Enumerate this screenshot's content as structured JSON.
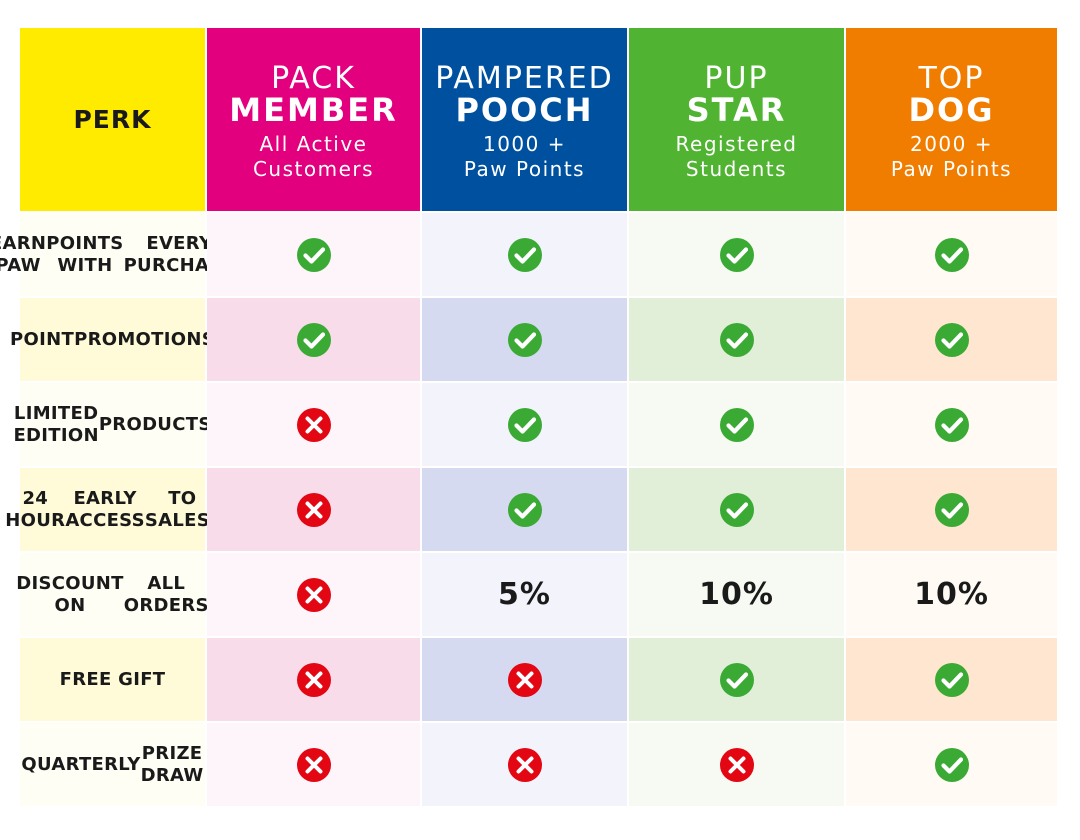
{
  "header": {
    "perk_label": "PERK",
    "tiers": [
      {
        "top": "PACK",
        "main": "MEMBER",
        "sub1": "All Active",
        "sub2": "Customers"
      },
      {
        "top": "PAMPERED",
        "main": "POOCH",
        "sub1": "1000 +",
        "sub2": "Paw Points"
      },
      {
        "top": "PUP",
        "main": "STAR",
        "sub1": "Registered",
        "sub2": "Students"
      },
      {
        "top": "TOP",
        "main": "DOG",
        "sub1": "2000 +",
        "sub2": "Paw Points"
      }
    ]
  },
  "colors": {
    "perk_header": "#ffeb00",
    "tiers": [
      "#e3007e",
      "#0050a0",
      "#50b432",
      "#f07d00"
    ],
    "tint_light": [
      "#fdf5fa",
      "#f3f4fb",
      "#f6faf2",
      "#fffaf3"
    ],
    "tint_dark": [
      "#f9dcea",
      "#d6daf0",
      "#e2efd8",
      "#ffe6d0"
    ],
    "label_light": "#fffef5",
    "label_dark": "#fffbd9",
    "check": "#3aaa35",
    "cross": "#e30613"
  },
  "rows": [
    {
      "label": [
        "EARN PAW",
        "POINTS WITH",
        "EVERY PURCHASE"
      ],
      "values": [
        "check",
        "check",
        "check",
        "check"
      ]
    },
    {
      "label": [
        "POINT",
        "PROMOTIONS"
      ],
      "values": [
        "check",
        "check",
        "check",
        "check"
      ]
    },
    {
      "label": [
        "LIMITED EDITION",
        "PRODUCTS"
      ],
      "values": [
        "cross",
        "check",
        "check",
        "check"
      ]
    },
    {
      "label": [
        "24 HOUR",
        "EARLY ACCESS",
        "TO SALES*"
      ],
      "values": [
        "cross",
        "check",
        "check",
        "check"
      ]
    },
    {
      "label": [
        "DISCOUNT ON",
        "ALL ORDERS"
      ],
      "values": [
        "cross",
        "5%",
        "10%",
        "10%"
      ]
    },
    {
      "label": [
        "FREE GIFT"
      ],
      "values": [
        "cross",
        "cross",
        "check",
        "check"
      ]
    },
    {
      "label": [
        "QUARTERLY",
        "PRIZE DRAW"
      ],
      "values": [
        "cross",
        "cross",
        "cross",
        "check"
      ]
    }
  ],
  "icons": {
    "check": "check-circle-icon",
    "cross": "cross-circle-icon"
  }
}
